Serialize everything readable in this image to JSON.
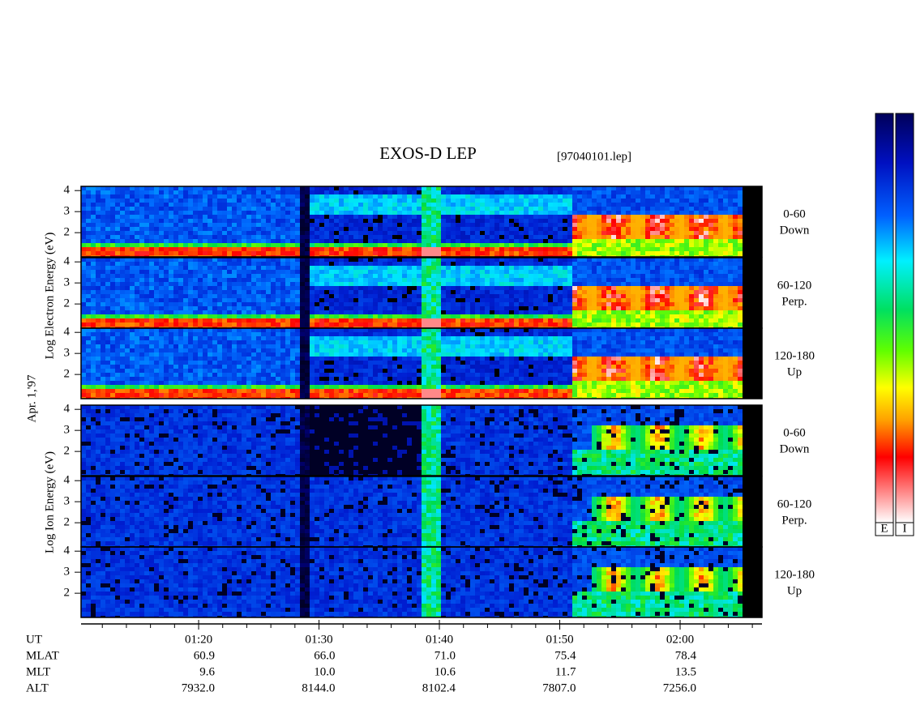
{
  "chart_data": {
    "type": "spectrogram",
    "title": "EXOS-D LEP",
    "subtitle": "[97040101.lep]",
    "date_label": "Apr. 1,'97",
    "xlim": [
      "01:10:14",
      "02:06:48"
    ],
    "xticks": [
      "01:20",
      "01:30",
      "01:40",
      "01:50",
      "02:00"
    ],
    "xminorticks": [
      "01:12",
      "01:14",
      "01:16",
      "01:18",
      "01:22",
      "01:24",
      "01:26",
      "01:28",
      "01:32",
      "01:34",
      "01:36",
      "01:38",
      "01:42",
      "01:44",
      "01:46",
      "01:48",
      "01:52",
      "01:54",
      "01:56",
      "01:58",
      "02:02",
      "02:04",
      "02:06"
    ],
    "ylim": [
      0.85,
      4.2
    ],
    "yticks": [
      2,
      3,
      4
    ],
    "groups": [
      {
        "ylabel": "Log Electron Energy (eV)",
        "panels": [
          {
            "angle": "0-60",
            "direction": "Down"
          },
          {
            "angle": "60-120",
            "direction": "Perp."
          },
          {
            "angle": "120-180",
            "direction": "Up"
          }
        ]
      },
      {
        "ylabel": "Log Ion Energy (eV)",
        "panels": [
          {
            "angle": "0-60",
            "direction": "Down"
          },
          {
            "angle": "60-120",
            "direction": "Perp."
          },
          {
            "angle": "120-180",
            "direction": "Up"
          }
        ]
      }
    ],
    "x_row_label": "UT",
    "ephemeris": [
      {
        "name": "MLAT",
        "values": [
          "60.9",
          "66.0",
          "71.0",
          "75.4",
          "78.4"
        ]
      },
      {
        "name": "MLT",
        "values": [
          "9.6",
          "10.0",
          "10.6",
          "11.7",
          "13.5"
        ]
      },
      {
        "name": "ALT",
        "values": [
          "7932.0",
          "8144.0",
          "8102.4",
          "7807.0",
          "7256.0"
        ]
      }
    ],
    "colorbars": [
      "E",
      "I"
    ]
  }
}
